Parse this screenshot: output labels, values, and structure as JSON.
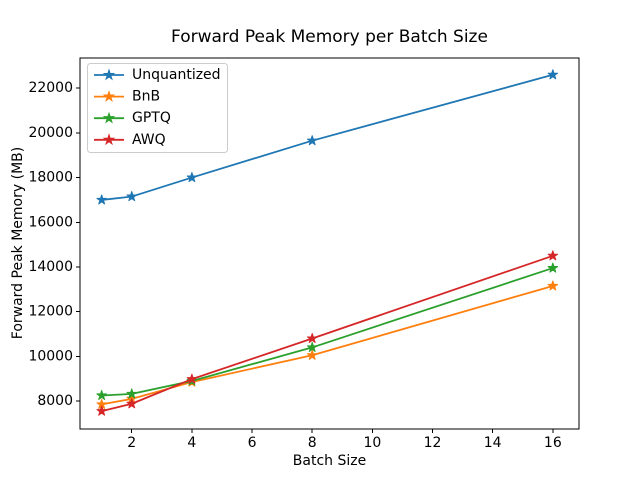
{
  "figure": {
    "background": "#ffffff",
    "text_color": "#000000",
    "spine_color": "#000000",
    "legend_border_color": "#cccccc"
  },
  "chart_data": {
    "type": "line",
    "title": "Forward Peak Memory per Batch Size",
    "xlabel": "Batch Size",
    "ylabel": "Forward Peak Memory (MB)",
    "x": [
      1,
      2,
      4,
      8,
      16
    ],
    "series": [
      {
        "name": "Unquantized",
        "color": "#1f77b4",
        "values": [
          17000,
          17150,
          18000,
          19650,
          22600
        ]
      },
      {
        "name": "BnB",
        "color": "#ff7f0e",
        "values": [
          7850,
          8100,
          8850,
          10050,
          13150
        ]
      },
      {
        "name": "GPTQ",
        "color": "#2ca02c",
        "values": [
          8250,
          8320,
          8900,
          10400,
          13950
        ]
      },
      {
        "name": "AWQ",
        "color": "#d62728",
        "values": [
          7550,
          7880,
          8980,
          10800,
          14500
        ]
      }
    ],
    "marker": "star",
    "xticks": [
      2,
      4,
      6,
      8,
      10,
      12,
      14,
      16
    ],
    "yticks": [
      8000,
      10000,
      12000,
      14000,
      16000,
      18000,
      20000,
      22000
    ],
    "xlim": [
      0.28,
      16.87
    ],
    "ylim": [
      6750,
      23350
    ],
    "grid": false,
    "legend_position": "upper left"
  }
}
